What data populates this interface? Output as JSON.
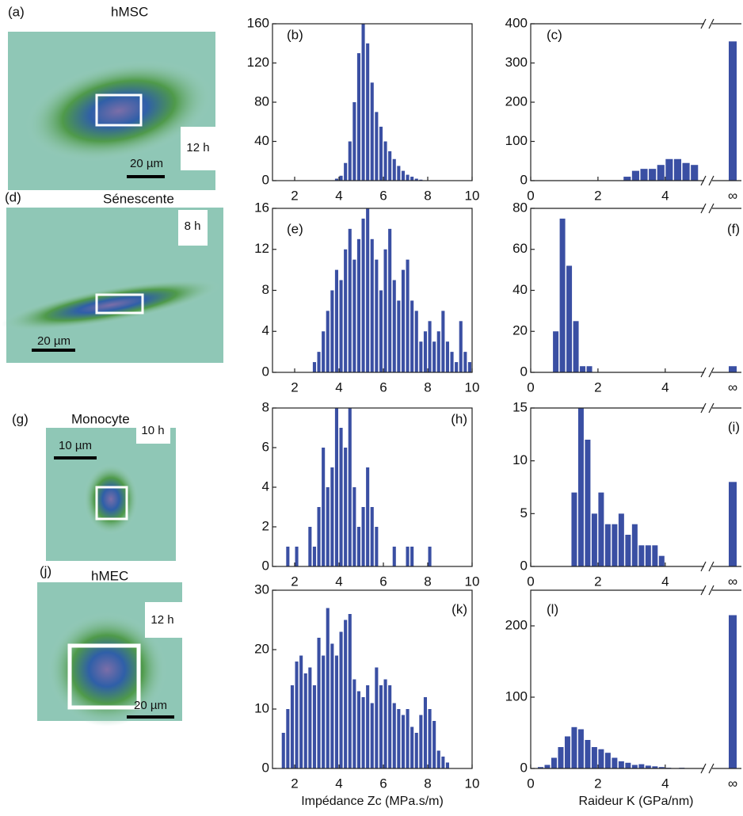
{
  "panels": [
    {
      "label": "(a)",
      "name": "hMSC",
      "time": "12 h",
      "scale": "20 µm"
    },
    {
      "label": "(d)",
      "name": "Sénescente",
      "time": "8 h",
      "scale": "20 µm"
    },
    {
      "label": "(g)",
      "name": "Monocyte",
      "time": "10 h",
      "scale": "10 µm"
    },
    {
      "label": "(j)",
      "name": "hMEC",
      "time": "12 h",
      "scale": "20 µm"
    }
  ],
  "chart_data": [
    {
      "type": "histogram",
      "panel": "(b)",
      "color": "#3a4fa3",
      "xlim": [
        1,
        10
      ],
      "ylim": [
        0,
        160
      ],
      "xticks": [
        2,
        4,
        6,
        8,
        10
      ],
      "yticks": [
        0,
        40,
        80,
        120,
        160
      ],
      "bins": [
        3.8,
        4,
        4.2,
        4.4,
        4.6,
        4.8,
        5,
        5.2,
        5.4,
        5.6,
        5.8,
        6,
        6.2,
        6.4,
        6.6,
        6.8,
        7,
        7.2,
        7.4,
        7.6,
        7.8
      ],
      "counts": [
        2,
        5,
        18,
        40,
        80,
        130,
        160,
        140,
        100,
        70,
        55,
        40,
        30,
        22,
        15,
        10,
        6,
        4,
        2,
        1
      ]
    },
    {
      "type": "histogram-break",
      "panel": "(c)",
      "color": "#3a4fa3",
      "xlim": [
        0,
        5.3
      ],
      "ylim": [
        0,
        400
      ],
      "xticks": [
        0,
        2,
        4
      ],
      "yticks": [
        0,
        100,
        200,
        300,
        400
      ],
      "bins": [
        2.75,
        3,
        3.25,
        3.5,
        3.75,
        4,
        4.25,
        4.5,
        4.75,
        5
      ],
      "counts": [
        10,
        25,
        30,
        30,
        40,
        55,
        55,
        45,
        40
      ],
      "inf_label": "∞",
      "inf_value": 355
    },
    {
      "type": "histogram",
      "panel": "(e)",
      "color": "#3a4fa3",
      "xlim": [
        1,
        10
      ],
      "ylim": [
        0,
        16
      ],
      "xticks": [
        2,
        4,
        6,
        8,
        10
      ],
      "yticks": [
        0,
        4,
        8,
        12,
        16
      ],
      "bins": [
        2.8,
        3,
        3.2,
        3.4,
        3.6,
        3.8,
        4,
        4.2,
        4.4,
        4.6,
        4.8,
        5,
        5.2,
        5.4,
        5.6,
        5.8,
        6,
        6.2,
        6.4,
        6.6,
        6.8,
        7,
        7.2,
        7.4,
        7.6,
        7.8,
        8,
        8.2,
        8.4,
        8.6,
        8.8,
        9,
        9.2,
        9.4,
        9.6,
        9.8,
        10
      ],
      "counts": [
        1,
        2,
        4,
        6,
        8,
        10,
        9,
        12,
        14,
        11,
        13,
        15,
        16,
        13,
        11,
        8,
        12,
        14,
        9,
        7,
        10,
        11,
        7,
        6,
        3,
        4,
        5,
        3,
        4,
        6,
        3,
        2,
        1,
        5,
        2,
        1
      ]
    },
    {
      "type": "histogram-break",
      "panel": "(f)",
      "color": "#3a4fa3",
      "xlim": [
        0,
        5.3
      ],
      "ylim": [
        0,
        80
      ],
      "xticks": [
        0,
        2,
        4
      ],
      "yticks": [
        0,
        20,
        40,
        60,
        80
      ],
      "bins": [
        0.65,
        0.85,
        1.05,
        1.25,
        1.45,
        1.65,
        1.85
      ],
      "counts": [
        20,
        75,
        52,
        25,
        3,
        3
      ],
      "inf_label": "∞",
      "inf_value": 3
    },
    {
      "type": "histogram",
      "panel": "(h)",
      "color": "#3a4fa3",
      "xlim": [
        1,
        10
      ],
      "ylim": [
        0,
        8
      ],
      "xticks": [
        2,
        4,
        6,
        8,
        10
      ],
      "yticks": [
        0,
        2,
        4,
        6,
        8
      ],
      "bins": [
        1.6,
        1.8,
        2,
        2.2,
        2.4,
        2.6,
        2.8,
        3,
        3.2,
        3.4,
        3.6,
        3.8,
        4,
        4.2,
        4.4,
        4.6,
        4.8,
        5,
        5.2,
        5.4,
        5.6,
        5.8,
        6,
        6.2,
        6.4,
        6.6,
        6.8,
        7,
        7.2,
        7.4,
        7.6,
        7.8,
        8,
        8.2
      ],
      "counts": [
        1,
        0,
        1,
        0,
        0,
        2,
        1,
        3,
        6,
        4,
        5,
        8,
        7,
        6,
        8,
        4,
        2,
        3,
        5,
        3,
        2,
        0,
        0,
        0,
        1,
        0,
        0,
        1,
        1,
        0,
        0,
        0,
        1
      ]
    },
    {
      "type": "histogram-break",
      "panel": "(i)",
      "color": "#3a4fa3",
      "xlim": [
        0,
        5.3
      ],
      "ylim": [
        0,
        15
      ],
      "xticks": [
        0,
        2,
        4
      ],
      "yticks": [
        0,
        5,
        10,
        15
      ],
      "bins": [
        1.2,
        1.4,
        1.6,
        1.8,
        2,
        2.2,
        2.4,
        2.6,
        2.8,
        3,
        3.2,
        3.4,
        3.6,
        3.8,
        4
      ],
      "counts": [
        7,
        15,
        12,
        5,
        7,
        4,
        4,
        5,
        3,
        4,
        2,
        2,
        2,
        1
      ],
      "inf_label": "∞",
      "inf_value": 8
    },
    {
      "type": "histogram",
      "panel": "(k)",
      "color": "#3a4fa3",
      "xlim": [
        1,
        10
      ],
      "ylim": [
        0,
        30
      ],
      "xticks": [
        2,
        4,
        6,
        8,
        10
      ],
      "yticks": [
        0,
        10,
        20,
        30
      ],
      "xlabel": "Impédance Zc (MPa.s/m)",
      "bins": [
        1.4,
        1.6,
        1.8,
        2,
        2.2,
        2.4,
        2.6,
        2.8,
        3,
        3.2,
        3.4,
        3.6,
        3.8,
        4,
        4.2,
        4.4,
        4.6,
        4.8,
        5,
        5.2,
        5.4,
        5.6,
        5.8,
        6,
        6.2,
        6.4,
        6.6,
        6.8,
        7,
        7.2,
        7.4,
        7.6,
        7.8,
        8,
        8.2,
        8.4,
        8.6,
        8.8,
        9
      ],
      "counts": [
        6,
        10,
        14,
        18,
        19,
        16,
        17,
        14,
        22,
        19,
        27,
        21,
        19,
        23,
        25,
        26,
        15,
        13,
        12,
        14,
        11,
        17,
        14,
        15,
        14,
        11,
        10,
        9,
        10,
        7,
        6,
        9,
        12,
        10,
        8,
        3,
        2,
        1
      ]
    },
    {
      "type": "histogram-break",
      "panel": "(l)",
      "color": "#3a4fa3",
      "xlim": [
        0,
        5.3
      ],
      "ylim": [
        0,
        250
      ],
      "xticks": [
        0,
        2,
        4
      ],
      "yticks": [
        0,
        100,
        200
      ],
      "xlabel": "Raideur K (GPa/nm)",
      "bins": [
        0.2,
        0.4,
        0.6,
        0.8,
        1,
        1.2,
        1.4,
        1.6,
        1.8,
        2,
        2.2,
        2.4,
        2.6,
        2.8,
        3,
        3.2,
        3.4,
        3.6,
        3.8,
        4,
        4.2,
        4.4,
        4.6,
        4.8,
        5
      ],
      "counts": [
        2,
        5,
        15,
        30,
        45,
        58,
        55,
        40,
        30,
        27,
        22,
        15,
        10,
        8,
        5,
        6,
        4,
        3,
        2,
        1,
        0,
        1,
        0,
        0
      ],
      "inf_label": "∞",
      "inf_value": 215
    }
  ]
}
